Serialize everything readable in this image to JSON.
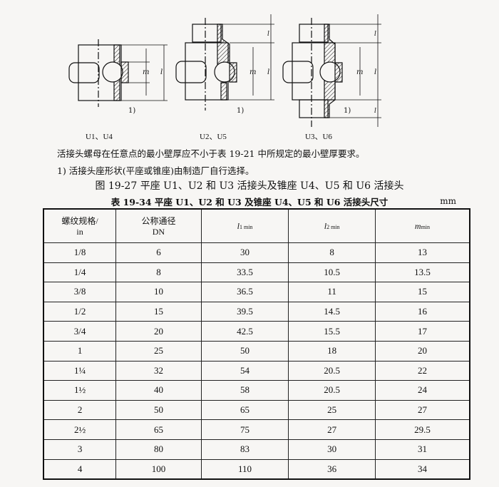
{
  "figure": {
    "variants": [
      "U1、U4",
      "U2、U5",
      "U3、U6"
    ],
    "dim_labels": {
      "l1": "l1",
      "l2": "l2",
      "m": "m",
      "callout": "1)"
    }
  },
  "notes": [
    "活接头螺母在任意点的最小壁厚应不小于表 19-21 中所规定的最小壁厚要求。",
    "1) 活接头座形状(平座或锥座)由制造厂自行选择。"
  ],
  "figure_caption": "图 19-27   平座 U1、U2 和 U3 活接头及锥座 U4、U5 和 U6 活接头",
  "table": {
    "caption": "表 19-34   平座 U1、U2 和 U3 及锥座 U4、U5 和 U6 活接头尺寸",
    "unit": "mm",
    "headers": {
      "thread_a": "螺纹规格/",
      "thread_b": "in",
      "dn_a": "公称通径",
      "dn_b": "DN",
      "l1": "l",
      "l1_sub": "1 min",
      "l2": "l",
      "l2_sub": "2 min",
      "m": "m",
      "m_sub": "min"
    },
    "rows": [
      [
        "1/8",
        "6",
        "30",
        "8",
        "13"
      ],
      [
        "1/4",
        "8",
        "33.5",
        "10.5",
        "13.5"
      ],
      [
        "3/8",
        "10",
        "36.5",
        "11",
        "15"
      ],
      [
        "1/2",
        "15",
        "39.5",
        "14.5",
        "16"
      ],
      [
        "3/4",
        "20",
        "42.5",
        "15.5",
        "17"
      ],
      [
        "1",
        "25",
        "50",
        "18",
        "20"
      ],
      [
        "1¼",
        "32",
        "54",
        "20.5",
        "22"
      ],
      [
        "1½",
        "40",
        "58",
        "20.5",
        "24"
      ],
      [
        "2",
        "50",
        "65",
        "25",
        "27"
      ],
      [
        "2½",
        "65",
        "75",
        "27",
        "29.5"
      ],
      [
        "3",
        "80",
        "83",
        "30",
        "31"
      ],
      [
        "4",
        "100",
        "110",
        "36",
        "34"
      ]
    ]
  }
}
